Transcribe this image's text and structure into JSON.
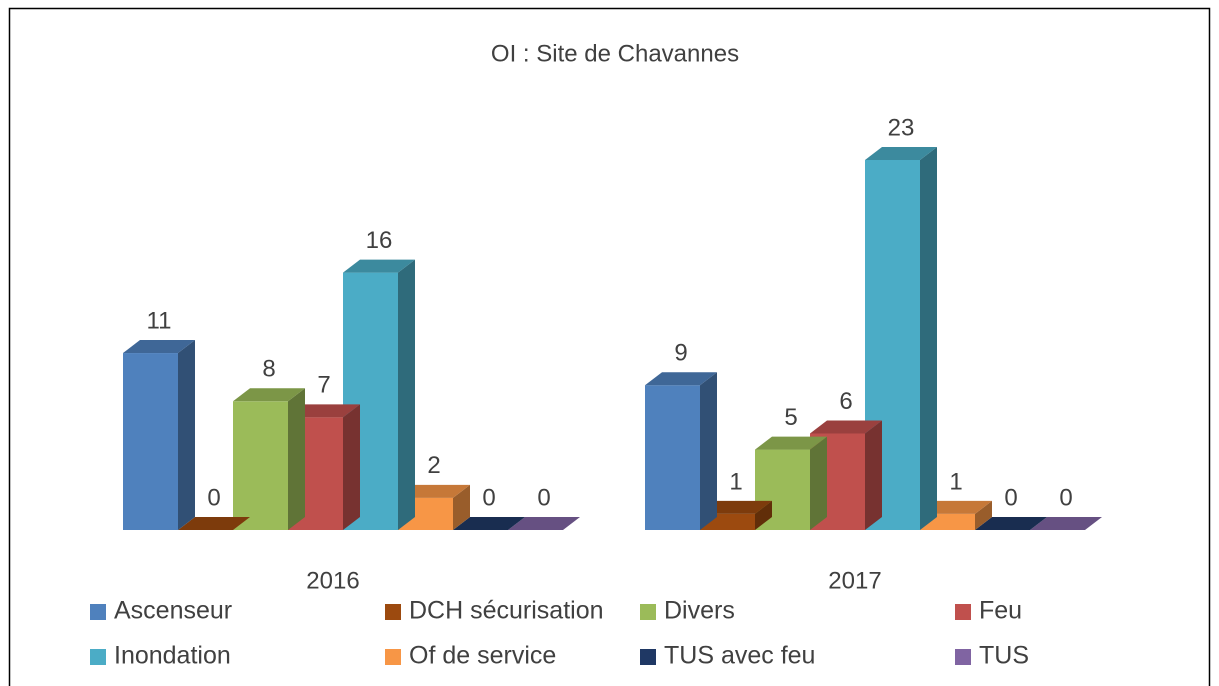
{
  "chart_data": {
    "type": "bar3d",
    "title": "OI : Site de Chavannes",
    "categories": [
      "2016",
      "2017"
    ],
    "series": [
      {
        "name": "Ascenseur",
        "color": "#4f81bd",
        "values": [
          11,
          9
        ]
      },
      {
        "name": "DCH sécurisation",
        "color": "#9c4a0f",
        "values": [
          0,
          1
        ]
      },
      {
        "name": "Divers",
        "color": "#9bbb59",
        "values": [
          8,
          5
        ]
      },
      {
        "name": "Feu",
        "color": "#c0504d",
        "values": [
          7,
          6
        ]
      },
      {
        "name": "Inondation",
        "color": "#4bacc6",
        "values": [
          16,
          23
        ]
      },
      {
        "name": "Of de service",
        "color": "#f79646",
        "values": [
          2,
          1
        ]
      },
      {
        "name": "TUS avec feu",
        "color": "#1f3864",
        "values": [
          0,
          0
        ]
      },
      {
        "name": "TUS",
        "color": "#8064a2",
        "values": [
          0,
          0
        ]
      }
    ]
  }
}
